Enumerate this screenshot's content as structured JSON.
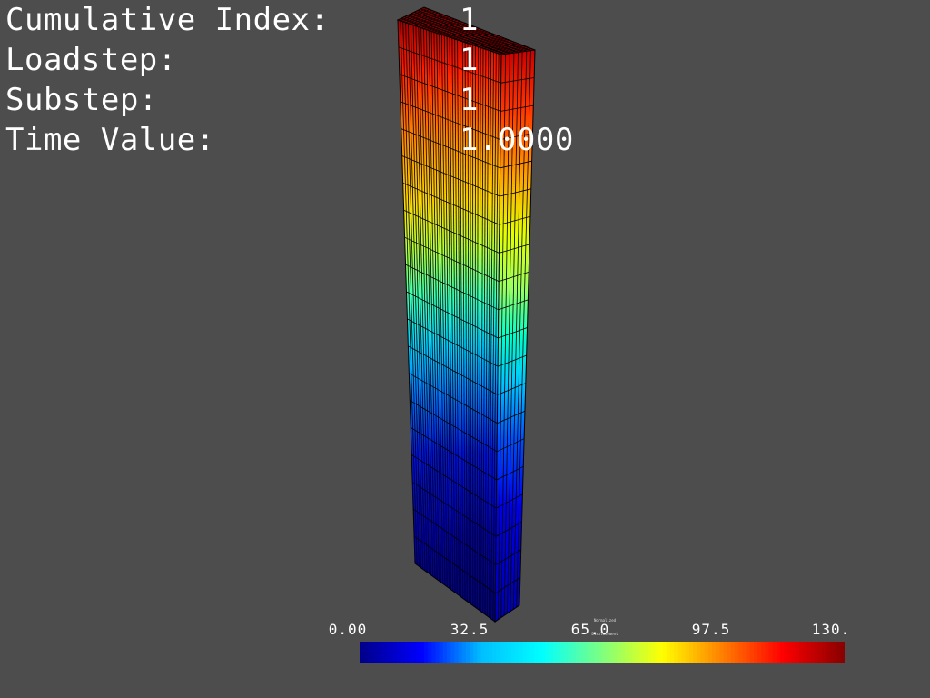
{
  "info": {
    "rows": [
      {
        "label": "Cumulative Index:",
        "value": "1"
      },
      {
        "label": "Loadstep:",
        "value": "1"
      },
      {
        "label": "Substep:",
        "value": "1"
      },
      {
        "label": "Time Value:",
        "value": "1.0000"
      }
    ]
  },
  "colorbar": {
    "title_line1": "Normalized",
    "title_line2": "Displacement",
    "tick_labels": [
      "0.00",
      "32.5",
      "65.0",
      "97.5",
      "130."
    ],
    "min": 0,
    "max": 130,
    "colors": [
      "#00008b",
      "#0000ff",
      "#00bfff",
      "#00ffff",
      "#7fff7f",
      "#ffff00",
      "#ff7f00",
      "#ff0000",
      "#8b0000"
    ]
  },
  "colors": {
    "background": "#4d4d4d",
    "text": "#ffffff",
    "mesh_edge": "#000000"
  }
}
